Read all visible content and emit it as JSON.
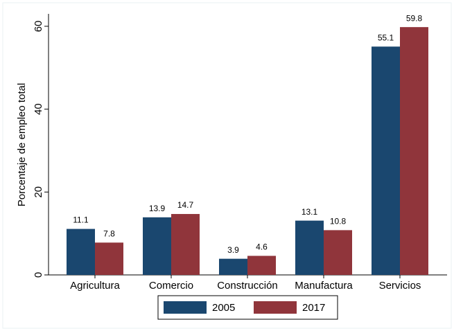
{
  "chart_data": {
    "type": "bar",
    "y_label": "Porcentaje de empleo total",
    "categories": [
      "Agricultura",
      "Comercio",
      "Construcción",
      "Manufactura",
      "Servicios"
    ],
    "series": [
      {
        "name": "2005",
        "color": "#1a476f",
        "values": [
          11.1,
          13.9,
          3.9,
          13.1,
          55.1
        ]
      },
      {
        "name": "2017",
        "color": "#90353b",
        "values": [
          7.8,
          14.7,
          4.6,
          10.8,
          59.8
        ]
      }
    ],
    "ylim": [
      0,
      63
    ],
    "yticks": [
      0,
      20,
      40,
      60
    ],
    "grid": false,
    "legend": "bottom"
  }
}
